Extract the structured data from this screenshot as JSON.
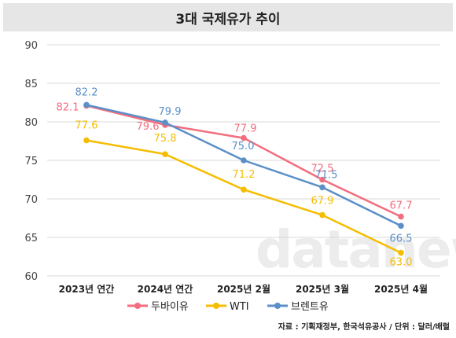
{
  "chart_data": {
    "type": "line",
    "title": "3대 국제유가 추이",
    "categories": [
      "2023년 연간",
      "2024년 연간",
      "2025년 2월",
      "2025년 3월",
      "2025년 4월"
    ],
    "ylim": [
      60,
      90
    ],
    "yticks": [
      "60",
      "65",
      "70",
      "75",
      "80",
      "85",
      "90"
    ],
    "grid": true,
    "legend_position": "bottom",
    "series": [
      {
        "name": "두바이유",
        "color": "#f26d7d",
        "values": [
          82.1,
          79.6,
          77.9,
          72.5,
          67.7
        ],
        "labels": [
          "82.1",
          "79.6",
          "77.9",
          "72.5",
          "67.7"
        ]
      },
      {
        "name": "WTI",
        "color": "#f5bd00",
        "values": [
          77.6,
          75.8,
          71.2,
          67.9,
          63.0
        ],
        "labels": [
          "77.6",
          "75.8",
          "71.2",
          "67.9",
          "63.0"
        ]
      },
      {
        "name": "브렌트유",
        "color": "#5b8fc7",
        "values": [
          82.2,
          79.9,
          75.0,
          71.5,
          66.5
        ],
        "labels": [
          "82.2",
          "79.9",
          "75.0",
          "71.5",
          "66.5"
        ]
      }
    ]
  },
  "watermark": "datanews",
  "source": "자료 : 기획재정부, 한국석유공사 / 단위 : 달러/배럴"
}
